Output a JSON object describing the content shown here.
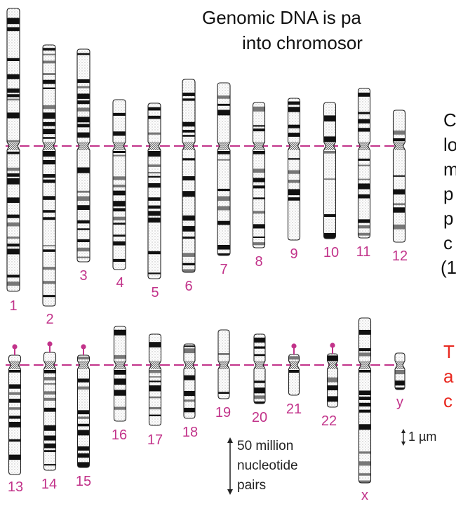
{
  "title": {
    "line1": "Genomic DNA is pa",
    "line2": "into chromosor"
  },
  "side_text": {
    "lines": [
      "C",
      "lo",
      "m",
      "p",
      "p",
      "c",
      "(1"
    ]
  },
  "red_text": {
    "lines": [
      "T",
      "a",
      "c"
    ]
  },
  "chromosome_labels": {
    "top": [
      "1",
      "2",
      "3",
      "4",
      "5",
      "6",
      "7",
      "8",
      "9",
      "10",
      "11",
      "12"
    ],
    "bottom": [
      "13",
      "14",
      "15",
      "16",
      "17",
      "18",
      "19",
      "20",
      "21",
      "22",
      "x",
      "y"
    ]
  },
  "scale_bar": {
    "line1": "50 million",
    "line2": "nucleotide",
    "line3": "pairs"
  },
  "micro_scale": "1 µm",
  "colors": {
    "label": "#c2338a",
    "centromere_line": "#c2338a",
    "red_text": "#e8281f"
  }
}
